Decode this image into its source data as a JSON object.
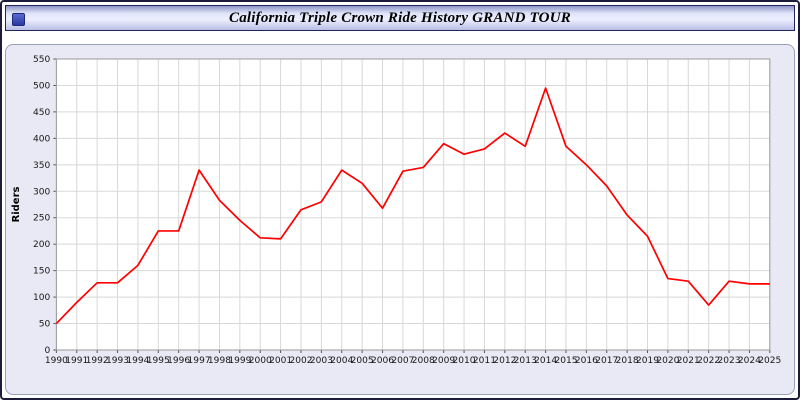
{
  "window": {
    "title": "California Triple Crown Ride History GRAND TOUR"
  },
  "colors": {
    "line": "#ff0000",
    "panel_bg": "#e8e9f4",
    "plot_bg": "#ffffff",
    "grid": "#d8d8d8",
    "tick_text": "#1a1a1a",
    "outer_border": "#1c1c3a"
  },
  "chart_data": {
    "type": "line",
    "title": "California Triple Crown Ride History GRAND TOUR",
    "xlabel": "",
    "ylabel": "Riders",
    "ylim": [
      0,
      550
    ],
    "ytick_step": 50,
    "grid": true,
    "legend": "none",
    "plot_bg": "#ffffff",
    "grid_color": "#d8d8d8",
    "tick_color": "#1a1a1a",
    "x": [
      1990,
      1991,
      1992,
      1993,
      1994,
      1995,
      1996,
      1997,
      1998,
      1999,
      2000,
      2001,
      2002,
      2003,
      2004,
      2005,
      2006,
      2007,
      2008,
      2009,
      2010,
      2011,
      2012,
      2013,
      2014,
      2015,
      2016,
      2017,
      2018,
      2019,
      2020,
      2021,
      2022,
      2023,
      2024,
      2025
    ],
    "series": [
      {
        "name": "Riders",
        "color": "#ff0000",
        "values": [
          50,
          90,
          127,
          127,
          160,
          225,
          225,
          340,
          283,
          245,
          212,
          210,
          265,
          280,
          340,
          315,
          268,
          338,
          345,
          390,
          370,
          380,
          410,
          385,
          495,
          385,
          350,
          310,
          255,
          215,
          135,
          130,
          85,
          130,
          125,
          125
        ]
      }
    ]
  }
}
